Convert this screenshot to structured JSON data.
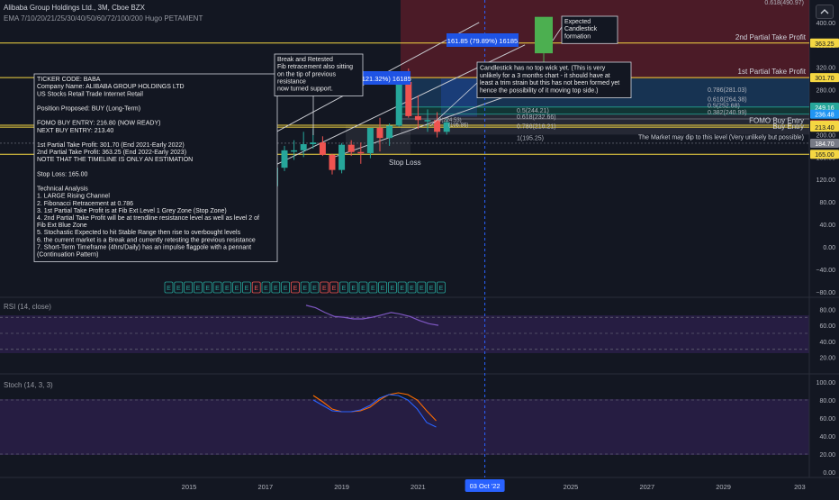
{
  "header": {
    "symbol_line": "Alibaba Group Holdings Ltd., 3M, Cboe BZX",
    "ema_line": "EMA 7/10/20/21/25/30/40/50/60/72/100/200 Hugo PETAMENT"
  },
  "price_axis": {
    "ticks": [
      "400.00",
      "360.00",
      "320.00",
      "280.00",
      "240.00",
      "200.00",
      "160.00",
      "120.00",
      "80.00",
      "40.00",
      "0.00",
      "−40.00",
      "−80.00"
    ],
    "tags": [
      {
        "label": "363.25",
        "price": 363.25,
        "color": "#f5d742",
        "text_color": "#131722"
      },
      {
        "label": "301.70",
        "price": 301.7,
        "color": "#f5d742",
        "text_color": "#131722"
      },
      {
        "label": "249.16",
        "price": 249.16,
        "color": "#26a69a",
        "text_color": "#ffffff"
      },
      {
        "label": "236.48",
        "price": 236.48,
        "color": "#2196f3",
        "text_color": "#ffffff"
      },
      {
        "label": "217.75",
        "price": 217.75,
        "color": "#ef5350",
        "text_color": "#ffffff"
      },
      {
        "label": "216.80",
        "price": 216.8,
        "color": "#f5d742",
        "text_color": "#131722"
      },
      {
        "label": "213.40",
        "price": 213.4,
        "color": "#f5d742",
        "text_color": "#131722"
      },
      {
        "label": "184.70",
        "price": 184.7,
        "color": "#787b86",
        "text_color": "#ffffff"
      },
      {
        "label": "165.00",
        "price": 165.0,
        "color": "#f5d742",
        "text_color": "#131722"
      }
    ]
  },
  "rsi_axis": {
    "ticks": [
      "80.00",
      "60.00",
      "40.00",
      "20.00"
    ]
  },
  "stoch_axis": {
    "ticks": [
      "100.00",
      "80.00",
      "60.00",
      "40.00",
      "20.00",
      "0.00"
    ]
  },
  "time_axis": {
    "ticks": [
      "2015",
      "2017",
      "2019",
      "2021",
      "2025",
      "2027",
      "2029",
      "203"
    ],
    "cursor_label": "03 Oct '22"
  },
  "rsi_label": "RSI (14, close)",
  "stoch_label": "Stoch (14, 3, 3)",
  "analysis_box": [
    "TICKER CODE: BABA",
    "Company Name: ALIBABA GROUP HOLDINGS LTD",
    "US Stocks Retail Trade Internet Retail",
    "",
    "Position Proposed: BUY (Long-Term)",
    "",
    "FOMO BUY ENTRY: 216.80 (NOW READY)",
    "NEXT BUY ENTRY: 213.40",
    "",
    "1st Partial Take Profit: 301.70 (End 2021-Early 2022)",
    "2nd Partial Take Profit: 363.25 (End 2022-Early 2023)",
    "NOTE THAT THE TIMELINE IS ONLY AN ESTIMATION",
    "",
    "Stop Loss: 165.00",
    "",
    "Technical Analysis",
    "1. LARGE Rising Channel",
    "2. Fibonacci Retracement at 0.786",
    "3. 1st Partial Take Profit is at Fib Ext Level 1 Grey Zone (Stop Zone)",
    "4. 2nd Partial Take Profit will be at trendline resistance level as well as level 2 of",
    "Fib Ext Blue Zone",
    "5. Stochastic Expected to hit Stable Range then rise to overbought levels",
    "6. the current market is a Break and currently retesting the previous resistance",
    "7. Short-Term Timeframe (4hrs/Daily) has an impulse flagpole with a pennant",
    "(Continuation Pattern)"
  ],
  "break_box": [
    "Break and Retested",
    "Fib retracement also sitting",
    "on the tip of previous",
    "resistance",
    "now turned support."
  ],
  "candle_note": [
    "Candlestick has no top wick yet. (This is very",
    "unlikely for a 3 months chart - it should have at",
    "least a trim strain but this has not been formed yet",
    "hence the possibility of it moving top side.)"
  ],
  "expected_note": [
    "Expected",
    "Candlestick",
    "formation"
  ],
  "measure_label": "161.85 (79.89%) 16185",
  "measure_label2": "(121.32%) 16185",
  "stop_loss_label": "Stop Loss",
  "level_labels": {
    "tp2": "2nd Partial Take Profit",
    "tp1": "1st Partial Take Profit",
    "fomo": "FOMO Buy Entry",
    "buy": "Buy Entry",
    "dip": "The Market may dip to this level (Very unlikely but possible)"
  },
  "fib_labels": [
    {
      "text": "0.786(281.03)",
      "price": 281.03
    },
    {
      "text": "0.618(264.38)",
      "price": 264.38
    },
    {
      "text": "0.5(252.68)",
      "price": 252.68
    },
    {
      "text": "0.382(240.99)",
      "price": 240.99
    }
  ],
  "fib_labels_left": [
    {
      "text": "0.5(244.21)",
      "price": 244.21
    },
    {
      "text": "0.618(232.66)",
      "price": 232.66
    },
    {
      "text": "0.786(216.21)",
      "price": 216.21
    },
    {
      "text": "1(195.25)",
      "price": 195.25
    }
  ],
  "small_labels": [
    "0(224.53)",
    "(195.86)"
  ],
  "top_label": "0.618(490.97)",
  "earnings_markers": [
    "E",
    "E",
    "E",
    "E",
    "E",
    "E",
    "E",
    "E",
    "E",
    "E",
    "E",
    "E",
    "E",
    "E",
    "E",
    "E",
    "E",
    "E",
    "E",
    "E",
    "E",
    "E",
    "E",
    "E",
    "E",
    "E",
    "E",
    "E",
    "E",
    "E",
    "E",
    "E",
    "E",
    "E"
  ],
  "earnings_red_index": [
    9,
    13,
    16,
    17,
    33
  ],
  "colors": {
    "up": "#26a69a",
    "down": "#ef5350",
    "bg": "#131722",
    "level": "#f5d742",
    "accent": "#2962ff"
  },
  "chart_data": {
    "type": "candlestick",
    "x": [
      "2014Q3",
      "2014Q4",
      "2015Q1",
      "2015Q2",
      "2015Q3",
      "2015Q4",
      "2016Q1",
      "2016Q2",
      "2016Q3",
      "2016Q4",
      "2017Q1",
      "2017Q2",
      "2017Q3",
      "2017Q4",
      "2018Q1",
      "2018Q2",
      "2018Q3",
      "2018Q4",
      "2019Q1",
      "2019Q2",
      "2019Q3",
      "2019Q4",
      "2020Q1",
      "2020Q2",
      "2020Q3",
      "2020Q4",
      "2021Q1",
      "2021Q2",
      "2021Q3",
      "2021Q4"
    ],
    "open": [
      93,
      110,
      102,
      88,
      82,
      68,
      81,
      78,
      79,
      98,
      88,
      108,
      141,
      172,
      172,
      183,
      186,
      164,
      137,
      182,
      169,
      167,
      212,
      194,
      216,
      294,
      233,
      226,
      226,
      205
    ],
    "close": [
      110,
      102,
      88,
      82,
      68,
      81,
      78,
      79,
      98,
      88,
      108,
      141,
      172,
      172,
      183,
      186,
      164,
      137,
      182,
      169,
      167,
      212,
      194,
      216,
      294,
      233,
      226,
      226,
      205,
      222
    ],
    "high": [
      120,
      118,
      105,
      92,
      90,
      82,
      84,
      82,
      108,
      100,
      110,
      145,
      180,
      190,
      205,
      210,
      197,
      166,
      185,
      190,
      186,
      212,
      230,
      220,
      300,
      318,
      270,
      245,
      240,
      228
    ],
    "low": [
      88,
      98,
      80,
      78,
      58,
      65,
      62,
      68,
      76,
      85,
      86,
      105,
      135,
      155,
      160,
      175,
      162,
      129,
      131,
      162,
      148,
      158,
      170,
      180,
      214,
      230,
      210,
      205,
      195,
      200
    ],
    "y_range": [
      -90,
      440
    ],
    "rsi": [
      85,
      82,
      76,
      71,
      70,
      68,
      68,
      70,
      73,
      76,
      74,
      71,
      66,
      62,
      60
    ],
    "stoch_k": [
      85,
      78,
      70,
      67,
      67,
      68,
      72,
      80,
      86,
      88,
      86,
      80,
      68,
      57
    ],
    "stoch_d": [
      80,
      74,
      68,
      67,
      67,
      69,
      74,
      82,
      86,
      85,
      80,
      70,
      55,
      50
    ]
  }
}
